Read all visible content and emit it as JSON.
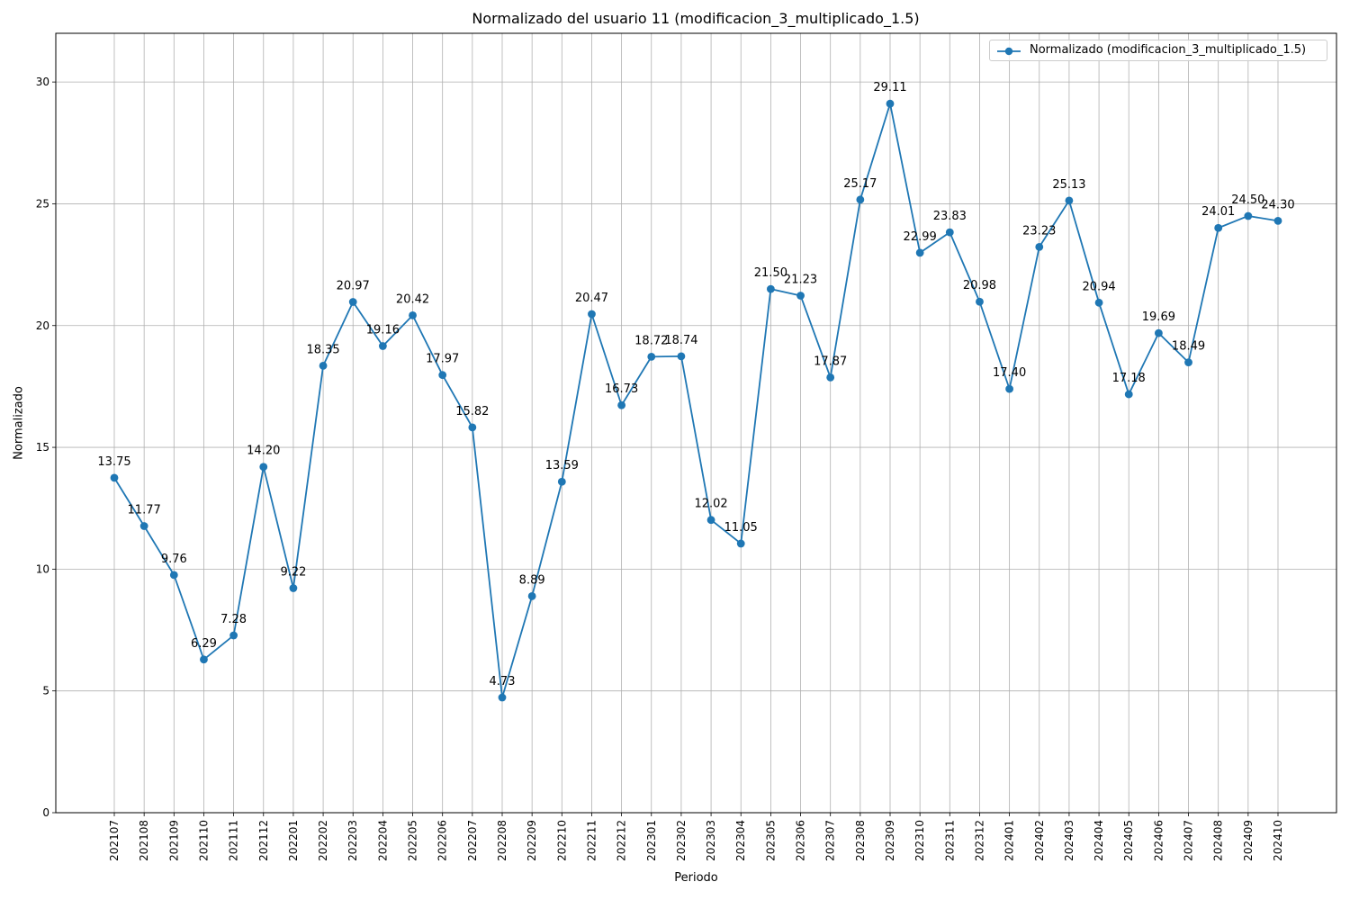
{
  "chart_data": {
    "type": "line",
    "title": "Normalizado del usuario 11 (modificacion_3_multiplicado_1.5)",
    "xlabel": "Periodo",
    "ylabel": "Normalizado",
    "ylim": [
      0,
      32
    ],
    "yticks": [
      0,
      5,
      10,
      15,
      20,
      25,
      30
    ],
    "grid": true,
    "legend_position": "top-right",
    "color": "#1f77b4",
    "marker": "circle",
    "categories": [
      "202107",
      "202108",
      "202109",
      "202110",
      "202111",
      "202112",
      "202201",
      "202202",
      "202203",
      "202204",
      "202205",
      "202206",
      "202207",
      "202208",
      "202209",
      "202210",
      "202211",
      "202212",
      "202301",
      "202302",
      "202303",
      "202304",
      "202305",
      "202306",
      "202307",
      "202308",
      "202309",
      "202310",
      "202311",
      "202312",
      "202401",
      "202402",
      "202403",
      "202404",
      "202405",
      "202406",
      "202407",
      "202408",
      "202409",
      "202410"
    ],
    "series": [
      {
        "name": "Normalizado (modificacion_3_multiplicado_1.5)",
        "values": [
          13.75,
          11.77,
          9.76,
          6.29,
          7.28,
          14.2,
          9.22,
          18.35,
          20.97,
          19.16,
          20.42,
          17.97,
          15.82,
          4.73,
          8.89,
          13.59,
          20.47,
          16.73,
          18.72,
          18.74,
          12.02,
          11.05,
          21.5,
          21.23,
          17.87,
          25.17,
          29.11,
          22.99,
          23.83,
          20.98,
          17.4,
          23.23,
          25.13,
          20.94,
          17.18,
          19.69,
          18.49,
          24.01,
          24.5,
          24.3
        ],
        "labels": [
          "13.75",
          "11.77",
          "9.76",
          "6.29",
          "7.28",
          "14.20",
          "9.22",
          "18.35",
          "20.97",
          "19.16",
          "20.42",
          "17.97",
          "15.82",
          "4.73",
          "8.89",
          "13.59",
          "20.47",
          "16.73",
          "18.72",
          "18.74",
          "12.02",
          "11.05",
          "21.50",
          "21.23",
          "17.87",
          "25.17",
          "29.11",
          "22.99",
          "23.83",
          "20.98",
          "17.40",
          "23.23",
          "25.13",
          "20.94",
          "17.18",
          "19.69",
          "18.49",
          "24.01",
          "24.50",
          "24.30"
        ]
      }
    ]
  }
}
